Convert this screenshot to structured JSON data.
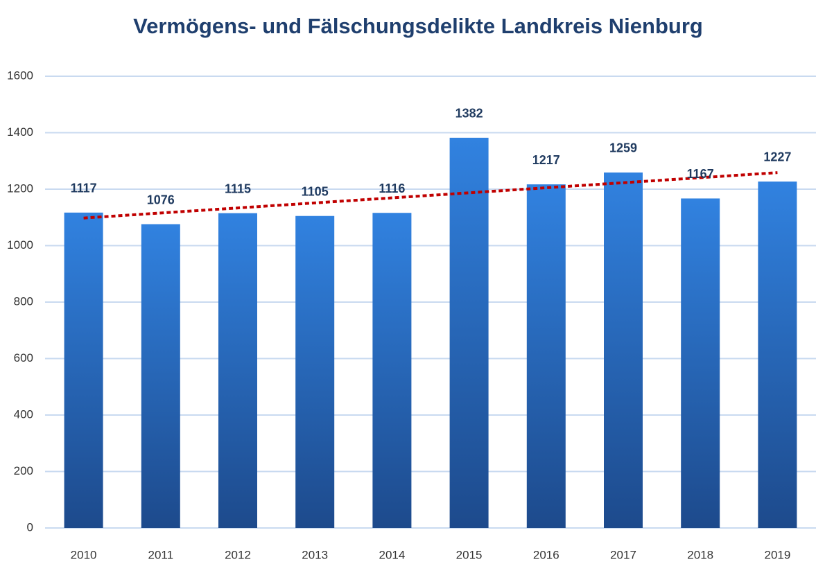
{
  "chart_data": {
    "type": "bar",
    "title": "Vermögens- und Fälschungsdelikte Landkreis Nienburg",
    "categories": [
      "2010",
      "2011",
      "2012",
      "2013",
      "2014",
      "2015",
      "2016",
      "2017",
      "2018",
      "2019"
    ],
    "values": [
      1117,
      1076,
      1115,
      1105,
      1116,
      1382,
      1217,
      1259,
      1167,
      1227
    ],
    "color": "#2d78d6",
    "ylim": [
      0,
      1600
    ],
    "yticks": [
      0,
      200,
      400,
      600,
      800,
      1000,
      1200,
      1400,
      1600
    ],
    "grid": true,
    "trendline": true,
    "trendline_color": "#c00000"
  }
}
